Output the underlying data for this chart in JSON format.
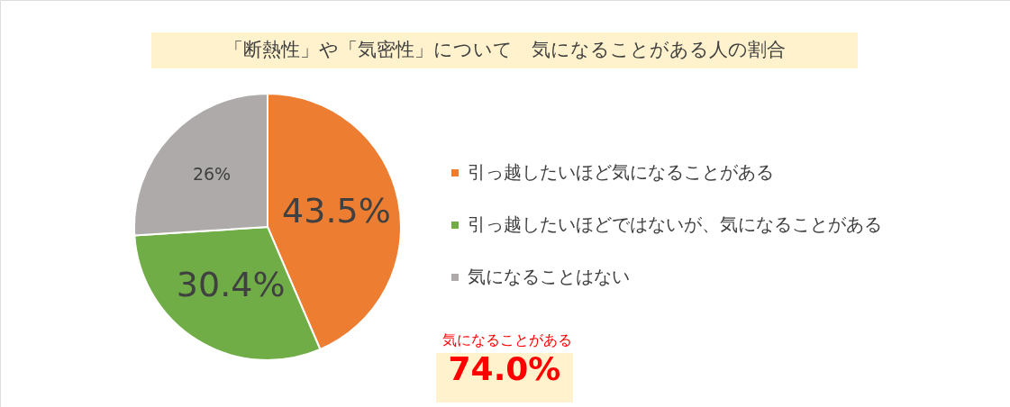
{
  "chart_data": {
    "type": "pie",
    "title": "「断熱性」や「気密性」について　気になることがある人の割合",
    "categories": [
      "引っ越したいほど気になることがある",
      "引っ越したいほどではないが、気になることがある",
      "気になることはない"
    ],
    "values": [
      43.5,
      30.4,
      26
    ],
    "colors": [
      "#ed7d31",
      "#70ad47",
      "#aeaaaa"
    ],
    "value_labels": [
      "43.5%",
      "30.4%",
      "26%"
    ],
    "legend": "right",
    "annotations": [
      "気になることがある",
      "74.0%"
    ]
  }
}
